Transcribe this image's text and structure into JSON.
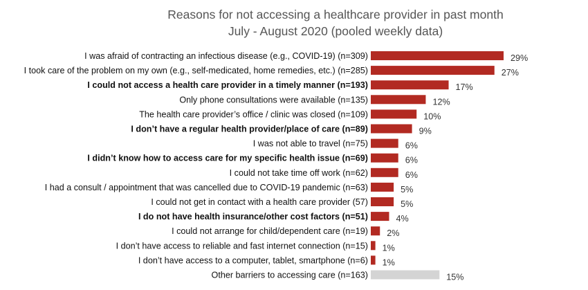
{
  "chart_data": {
    "type": "bar",
    "orientation": "horizontal",
    "title": "Reasons for not accessing a healthcare provider in past month",
    "subtitle": "July - August 2020 (pooled weekly data)",
    "unit": "%",
    "colors": {
      "primary": "#b22a22",
      "other": "#d4d4d4"
    },
    "categories": [
      "I was afraid of contracting an infectious disease (e.g., COVID-19) (n=309)",
      "I took care of the problem on my own (e.g., self-medicated, home remedies, etc.) (n=285)",
      "I could not access a health care provider in a timely manner (n=193)",
      "Only phone consultations were available (n=135)",
      "The health care provider’s office / clinic was closed (n=109)",
      "I don’t have a regular health provider/place of care (n=89)",
      "I was not able to travel (n=75)",
      "I didn’t know how to access care for my specific health issue (n=69)",
      "I could not take time off work (n=62)",
      "I had a consult / appointment that was cancelled due to COVID-19 pandemic (n=63)",
      "I could not get in contact with a health care provider (57)",
      "I do not have health insurance/other cost factors (n=51)",
      "I could not arrange for child/dependent care (n=19)",
      "I don’t have access to reliable and fast internet connection (n=15)",
      "I don’t have access to a computer, tablet, smartphone (n=6)",
      "Other barriers to accessing care (n=163)"
    ],
    "values": [
      29,
      27,
      17,
      12,
      10,
      9,
      6,
      6,
      6,
      5,
      5,
      4,
      2,
      1,
      1,
      15
    ],
    "value_labels": [
      "29%",
      "27%",
      "17%",
      "12%",
      "10%",
      "9%",
      "6%",
      "6%",
      "6%",
      "5%",
      "5%",
      "4%",
      "2%",
      "1%",
      "1%",
      "15%"
    ],
    "bold": [
      false,
      false,
      true,
      false,
      false,
      true,
      false,
      true,
      false,
      false,
      false,
      true,
      false,
      false,
      false,
      false
    ],
    "highlight_other": [
      false,
      false,
      false,
      false,
      false,
      false,
      false,
      false,
      false,
      false,
      false,
      false,
      false,
      false,
      false,
      true
    ]
  }
}
